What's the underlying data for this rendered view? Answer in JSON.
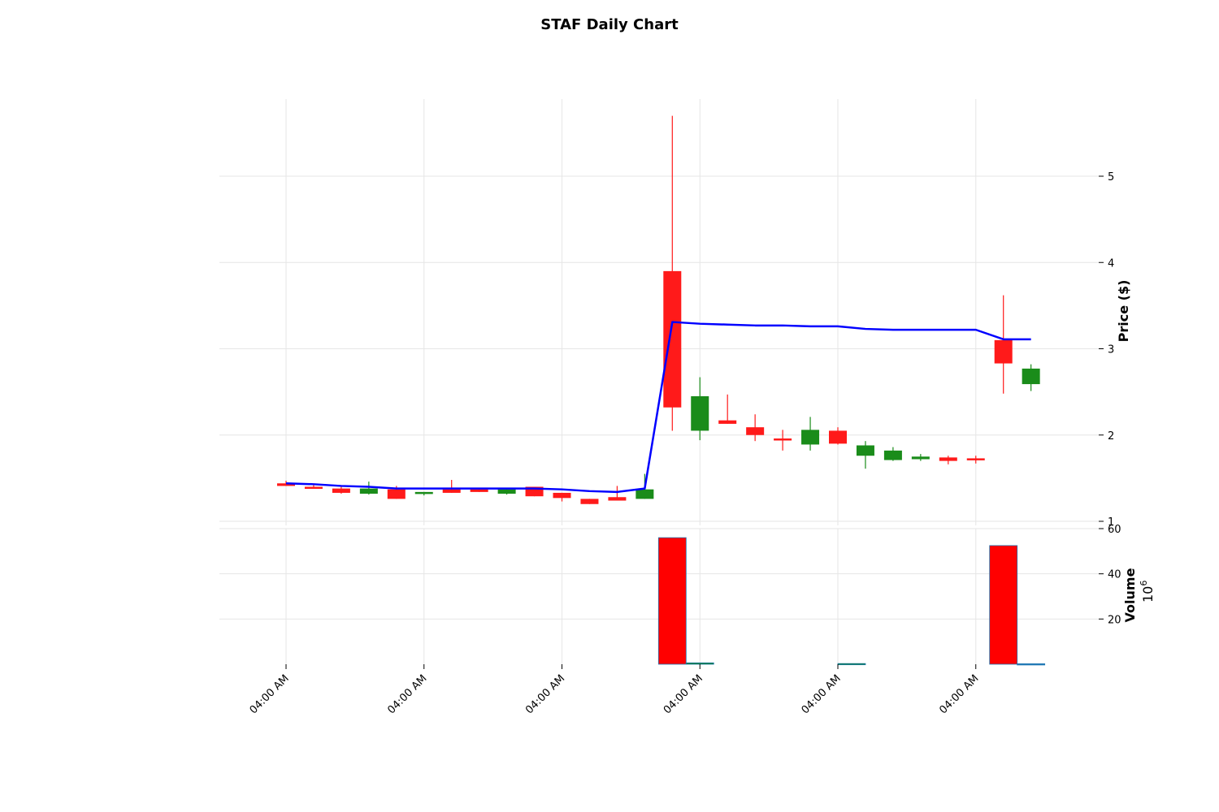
{
  "chart_data": {
    "type": "candlestick",
    "title": "STAF Daily Chart",
    "price_panel": {
      "ylabel": "Price ($)",
      "yticks": [
        1,
        2,
        3,
        4,
        5
      ],
      "ylim": [
        1,
        5.9
      ],
      "candles": [
        {
          "open": 1.44,
          "high": 1.47,
          "low": 1.41,
          "close": 1.41
        },
        {
          "open": 1.4,
          "high": 1.42,
          "low": 1.38,
          "close": 1.38
        },
        {
          "open": 1.38,
          "high": 1.4,
          "low": 1.32,
          "close": 1.33
        },
        {
          "open": 1.32,
          "high": 1.46,
          "low": 1.31,
          "close": 1.38
        },
        {
          "open": 1.37,
          "high": 1.41,
          "low": 1.26,
          "close": 1.26
        },
        {
          "open": 1.32,
          "high": 1.34,
          "low": 1.3,
          "close": 1.34
        },
        {
          "open": 1.37,
          "high": 1.48,
          "low": 1.33,
          "close": 1.33
        },
        {
          "open": 1.37,
          "high": 1.38,
          "low": 1.34,
          "close": 1.34
        },
        {
          "open": 1.32,
          "high": 1.39,
          "low": 1.31,
          "close": 1.37
        },
        {
          "open": 1.4,
          "high": 1.4,
          "low": 1.29,
          "close": 1.29
        },
        {
          "open": 1.33,
          "high": 1.33,
          "low": 1.23,
          "close": 1.27
        },
        {
          "open": 1.26,
          "high": 1.26,
          "low": 1.2,
          "close": 1.2
        },
        {
          "open": 1.28,
          "high": 1.41,
          "low": 1.24,
          "close": 1.24
        },
        {
          "open": 1.26,
          "high": 1.55,
          "low": 1.26,
          "close": 1.37
        },
        {
          "open": 3.9,
          "high": 5.7,
          "low": 2.05,
          "close": 2.32
        },
        {
          "open": 2.05,
          "high": 2.67,
          "low": 1.94,
          "close": 2.45
        },
        {
          "open": 2.17,
          "high": 2.47,
          "low": 2.13,
          "close": 2.13
        },
        {
          "open": 2.09,
          "high": 2.24,
          "low": 1.93,
          "close": 2.0
        },
        {
          "open": 1.96,
          "high": 2.06,
          "low": 1.82,
          "close": 1.95
        },
        {
          "open": 1.89,
          "high": 2.21,
          "low": 1.82,
          "close": 2.06
        },
        {
          "open": 2.05,
          "high": 2.09,
          "low": 1.89,
          "close": 1.9
        },
        {
          "open": 1.76,
          "high": 1.93,
          "low": 1.61,
          "close": 1.88
        },
        {
          "open": 1.71,
          "high": 1.86,
          "low": 1.7,
          "close": 1.82
        },
        {
          "open": 1.72,
          "high": 1.78,
          "low": 1.7,
          "close": 1.75
        },
        {
          "open": 1.74,
          "high": 1.76,
          "low": 1.66,
          "close": 1.7
        },
        {
          "open": 1.73,
          "high": 1.76,
          "low": 1.67,
          "close": 1.71
        },
        {
          "open": 3.1,
          "high": 3.62,
          "low": 2.48,
          "close": 2.83
        },
        {
          "open": 2.59,
          "high": 2.82,
          "low": 2.51,
          "close": 2.77
        }
      ],
      "moving_average": {
        "color": "#0000ff",
        "points": [
          {
            "i": 0,
            "value": 1.44
          },
          {
            "i": 1,
            "value": 1.43
          },
          {
            "i": 2,
            "value": 1.41
          },
          {
            "i": 3,
            "value": 1.4
          },
          {
            "i": 4,
            "value": 1.38
          },
          {
            "i": 5,
            "value": 1.38
          },
          {
            "i": 6,
            "value": 1.38
          },
          {
            "i": 7,
            "value": 1.38
          },
          {
            "i": 8,
            "value": 1.38
          },
          {
            "i": 9,
            "value": 1.38
          },
          {
            "i": 10,
            "value": 1.37
          },
          {
            "i": 11,
            "value": 1.35
          },
          {
            "i": 12,
            "value": 1.34
          },
          {
            "i": 13,
            "value": 1.38
          },
          {
            "i": 14,
            "value": 3.31
          },
          {
            "i": 15,
            "value": 3.29
          },
          {
            "i": 16,
            "value": 3.28
          },
          {
            "i": 17,
            "value": 3.27
          },
          {
            "i": 18,
            "value": 3.27
          },
          {
            "i": 19,
            "value": 3.26
          },
          {
            "i": 20,
            "value": 3.26
          },
          {
            "i": 21,
            "value": 3.23
          },
          {
            "i": 22,
            "value": 3.22
          },
          {
            "i": 23,
            "value": 3.22
          },
          {
            "i": 24,
            "value": 3.22
          },
          {
            "i": 25,
            "value": 3.22
          },
          {
            "i": 26,
            "value": 3.11
          },
          {
            "i": 27,
            "value": 3.11
          }
        ]
      }
    },
    "volume_panel": {
      "ylabel": "Volume",
      "multiplier_base": "10",
      "multiplier_exp": "6",
      "yticks": [
        20,
        40,
        60
      ],
      "ylim": [
        0,
        60
      ],
      "bars": [
        {
          "x": 14.0,
          "value": 56,
          "color": "#ff0000"
        },
        {
          "x": 15.0,
          "value": 0.6,
          "color": "#008000"
        },
        {
          "x": 20.5,
          "value": 0.3,
          "color": "#008000"
        },
        {
          "x": 26.0,
          "value": 52.5,
          "color": "#ff0000"
        },
        {
          "x": 27.0,
          "value": 0.2,
          "color": "#1f77b4"
        }
      ]
    },
    "xticks": [
      {
        "x": 0.0,
        "label": "04:00 AM"
      },
      {
        "x": 5.0,
        "label": "04:00 AM"
      },
      {
        "x": 10.0,
        "label": "04:00 AM"
      },
      {
        "x": 15.0,
        "label": "04:00 AM"
      },
      {
        "x": 20.0,
        "label": "04:00 AM"
      },
      {
        "x": 25.0,
        "label": "04:00 AM"
      }
    ],
    "colors": {
      "up": "#1a8c1a",
      "down": "#ff1a1a"
    },
    "grid": true
  }
}
